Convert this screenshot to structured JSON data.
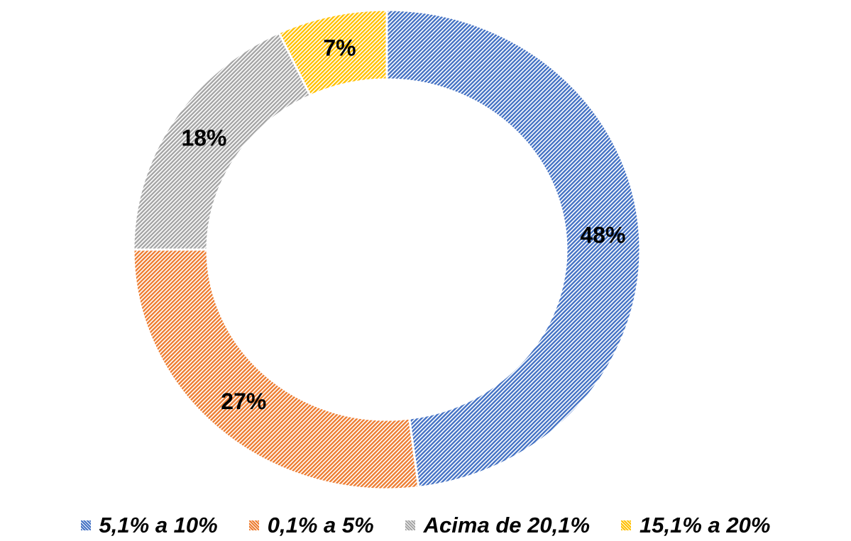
{
  "chart_data": {
    "type": "donut",
    "categories": [
      "5,1% a 10%",
      "0,1% a 5%",
      "Acima de 20,1%",
      "15,1% a 20%"
    ],
    "values": [
      48,
      27,
      18,
      7
    ],
    "value_labels": [
      "48%",
      "27%",
      "18%",
      "7%"
    ],
    "colors": [
      "#4472c4",
      "#ed7d31",
      "#a5a5a5",
      "#ffc000"
    ],
    "legend": "bottom"
  }
}
